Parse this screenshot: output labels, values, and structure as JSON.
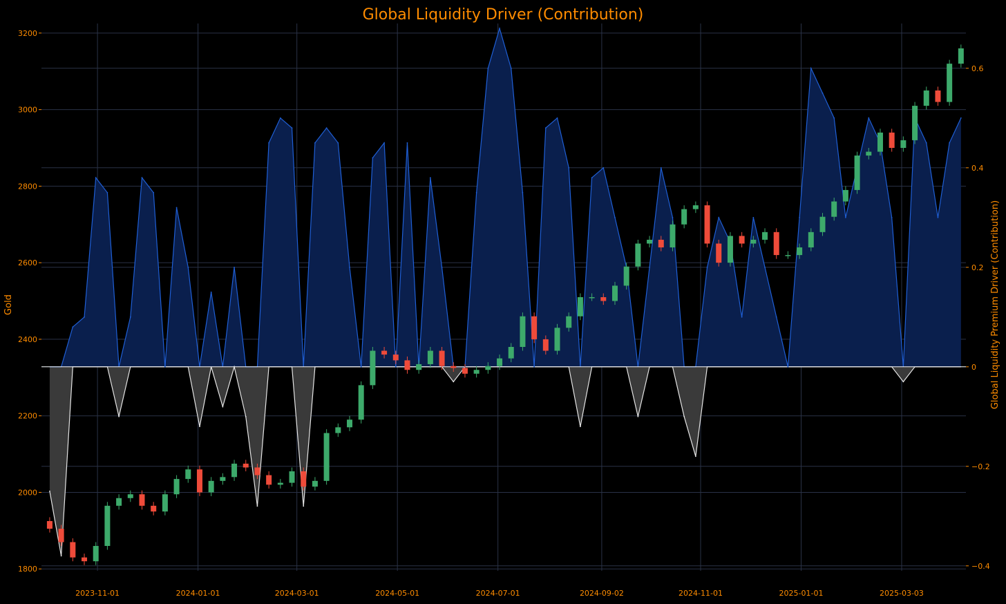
{
  "chart_data": {
    "type": "line",
    "title": "Global Liquidity Driver (Contribution)",
    "y_left_label": "Gold",
    "y_right_label": "Global Liquidity Premium Driver (Contribution)",
    "ylim_left": [
      1795,
      3225
    ],
    "ylim_right": [
      -0.41,
      0.69
    ],
    "x_ticks": [
      "2023-11-01",
      "2024-01-01",
      "2024-03-01",
      "2024-05-01",
      "2024-07-01",
      "2024-09-02",
      "2024-11-01",
      "2025-01-01",
      "2025-03-03"
    ],
    "y_left_ticks": [
      "1800",
      "2000",
      "2200",
      "2400",
      "2600",
      "2800",
      "3000",
      "3200"
    ],
    "y_right_ticks": [
      "−0.4",
      "−0.2",
      "0",
      "0.2",
      "0.4",
      "0.6"
    ],
    "grid": true,
    "colors": {
      "background": "#000000",
      "grid": "#2a3247",
      "text": "#ff8c00",
      "contribution_positive_line": "#1f5fd6",
      "contribution_positive_fill": "#0a1f4d",
      "contribution_negative_line": "#e6e6e6",
      "contribution_negative_fill": "#3a3a3a",
      "candle_up": "#3daa6b",
      "candle_down": "#ef4b3a"
    },
    "series": [
      {
        "name": "Gold",
        "axis": "left",
        "kind": "candlestick",
        "x": [
          "2023-10-03",
          "2023-10-10",
          "2023-10-17",
          "2023-10-24",
          "2023-10-31",
          "2023-11-07",
          "2023-11-14",
          "2023-11-21",
          "2023-11-28",
          "2023-12-05",
          "2023-12-12",
          "2023-12-19",
          "2023-12-26",
          "2024-01-02",
          "2024-01-09",
          "2024-01-16",
          "2024-01-23",
          "2024-01-30",
          "2024-02-06",
          "2024-02-13",
          "2024-02-20",
          "2024-02-27",
          "2024-03-05",
          "2024-03-12",
          "2024-03-19",
          "2024-03-26",
          "2024-04-02",
          "2024-04-09",
          "2024-04-16",
          "2024-04-23",
          "2024-04-30",
          "2024-05-07",
          "2024-05-14",
          "2024-05-21",
          "2024-05-28",
          "2024-06-04",
          "2024-06-11",
          "2024-06-18",
          "2024-06-25",
          "2024-07-02",
          "2024-07-09",
          "2024-07-16",
          "2024-07-23",
          "2024-07-30",
          "2024-08-06",
          "2024-08-13",
          "2024-08-20",
          "2024-08-27",
          "2024-09-03",
          "2024-09-10",
          "2024-09-17",
          "2024-09-24",
          "2024-10-01",
          "2024-10-08",
          "2024-10-15",
          "2024-10-22",
          "2024-10-29",
          "2024-11-05",
          "2024-11-12",
          "2024-11-19",
          "2024-11-26",
          "2024-12-03",
          "2024-12-10",
          "2024-12-17",
          "2024-12-24",
          "2024-12-31",
          "2025-01-07",
          "2025-01-14",
          "2025-01-21",
          "2025-01-28",
          "2025-02-04",
          "2025-02-11",
          "2025-02-18",
          "2025-02-25",
          "2025-03-04",
          "2025-03-11",
          "2025-03-18",
          "2025-03-25",
          "2025-04-01",
          "2025-04-08"
        ],
        "close": [
          1905,
          1870,
          1830,
          1820,
          1860,
          1965,
          1985,
          1995,
          1965,
          1950,
          1995,
          2035,
          2060,
          2000,
          2030,
          2040,
          2075,
          2065,
          2045,
          2020,
          2025,
          2055,
          2015,
          2030,
          2155,
          2170,
          2190,
          2280,
          2370,
          2360,
          2345,
          2320,
          2335,
          2370,
          2330,
          2325,
          2310,
          2320,
          2330,
          2350,
          2380,
          2460,
          2400,
          2370,
          2430,
          2460,
          2510,
          2510,
          2500,
          2540,
          2590,
          2650,
          2660,
          2640,
          2700,
          2740,
          2750,
          2650,
          2600,
          2670,
          2650,
          2660,
          2680,
          2620,
          2620,
          2640,
          2680,
          2720,
          2760,
          2790,
          2880,
          2890,
          2940,
          2900,
          2920,
          3010,
          3050,
          3020,
          3120,
          3160
        ]
      },
      {
        "name": "Global Liquidity Premium Driver (Contribution)",
        "axis": "right",
        "kind": "area",
        "x": [
          "2023-10-03",
          "2023-10-10",
          "2023-10-17",
          "2023-10-24",
          "2023-10-31",
          "2023-11-07",
          "2023-11-14",
          "2023-11-21",
          "2023-11-28",
          "2023-12-05",
          "2023-12-12",
          "2023-12-19",
          "2023-12-26",
          "2024-01-02",
          "2024-01-09",
          "2024-01-16",
          "2024-01-23",
          "2024-01-30",
          "2024-02-06",
          "2024-02-13",
          "2024-02-20",
          "2024-02-27",
          "2024-03-05",
          "2024-03-12",
          "2024-03-19",
          "2024-03-26",
          "2024-04-02",
          "2024-04-09",
          "2024-04-16",
          "2024-04-23",
          "2024-04-30",
          "2024-05-07",
          "2024-05-14",
          "2024-05-21",
          "2024-05-28",
          "2024-06-04",
          "2024-06-11",
          "2024-06-18",
          "2024-06-25",
          "2024-07-02",
          "2024-07-09",
          "2024-07-16",
          "2024-07-23",
          "2024-07-30",
          "2024-08-06",
          "2024-08-13",
          "2024-08-20",
          "2024-08-27",
          "2024-09-03",
          "2024-09-10",
          "2024-09-17",
          "2024-09-24",
          "2024-10-01",
          "2024-10-08",
          "2024-10-15",
          "2024-10-22",
          "2024-10-29",
          "2024-11-05",
          "2024-11-12",
          "2024-11-19",
          "2024-11-26",
          "2024-12-03",
          "2024-12-10",
          "2024-12-17",
          "2024-12-24",
          "2024-12-31",
          "2025-01-07",
          "2025-01-14",
          "2025-01-21",
          "2025-01-28",
          "2025-02-04",
          "2025-02-11",
          "2025-02-18",
          "2025-02-25",
          "2025-03-04",
          "2025-03-11",
          "2025-03-18",
          "2025-03-25",
          "2025-04-01",
          "2025-04-08"
        ],
        "values": [
          -0.25,
          -0.38,
          0.08,
          0.1,
          0.38,
          0.35,
          -0.1,
          0.1,
          0.38,
          0.35,
          0.0,
          0.32,
          0.2,
          -0.12,
          0.15,
          -0.08,
          0.2,
          -0.1,
          -0.28,
          0.45,
          0.5,
          0.48,
          -0.28,
          0.45,
          0.48,
          0.45,
          0.2,
          0.0,
          0.42,
          0.45,
          0.0,
          0.45,
          0.0,
          0.38,
          0.2,
          -0.03,
          0.0,
          0.35,
          0.6,
          0.68,
          0.6,
          0.35,
          0.0,
          0.48,
          0.5,
          0.4,
          -0.12,
          0.38,
          0.4,
          0.3,
          0.2,
          -0.1,
          0.2,
          0.4,
          0.3,
          -0.1,
          -0.18,
          0.2,
          0.3,
          0.25,
          0.1,
          0.3,
          0.2,
          0.1,
          0.0,
          0.3,
          0.6,
          0.55,
          0.5,
          0.3,
          0.4,
          0.5,
          0.45,
          0.3,
          -0.03,
          0.5,
          0.45,
          0.3,
          0.45,
          0.5
        ]
      }
    ]
  }
}
